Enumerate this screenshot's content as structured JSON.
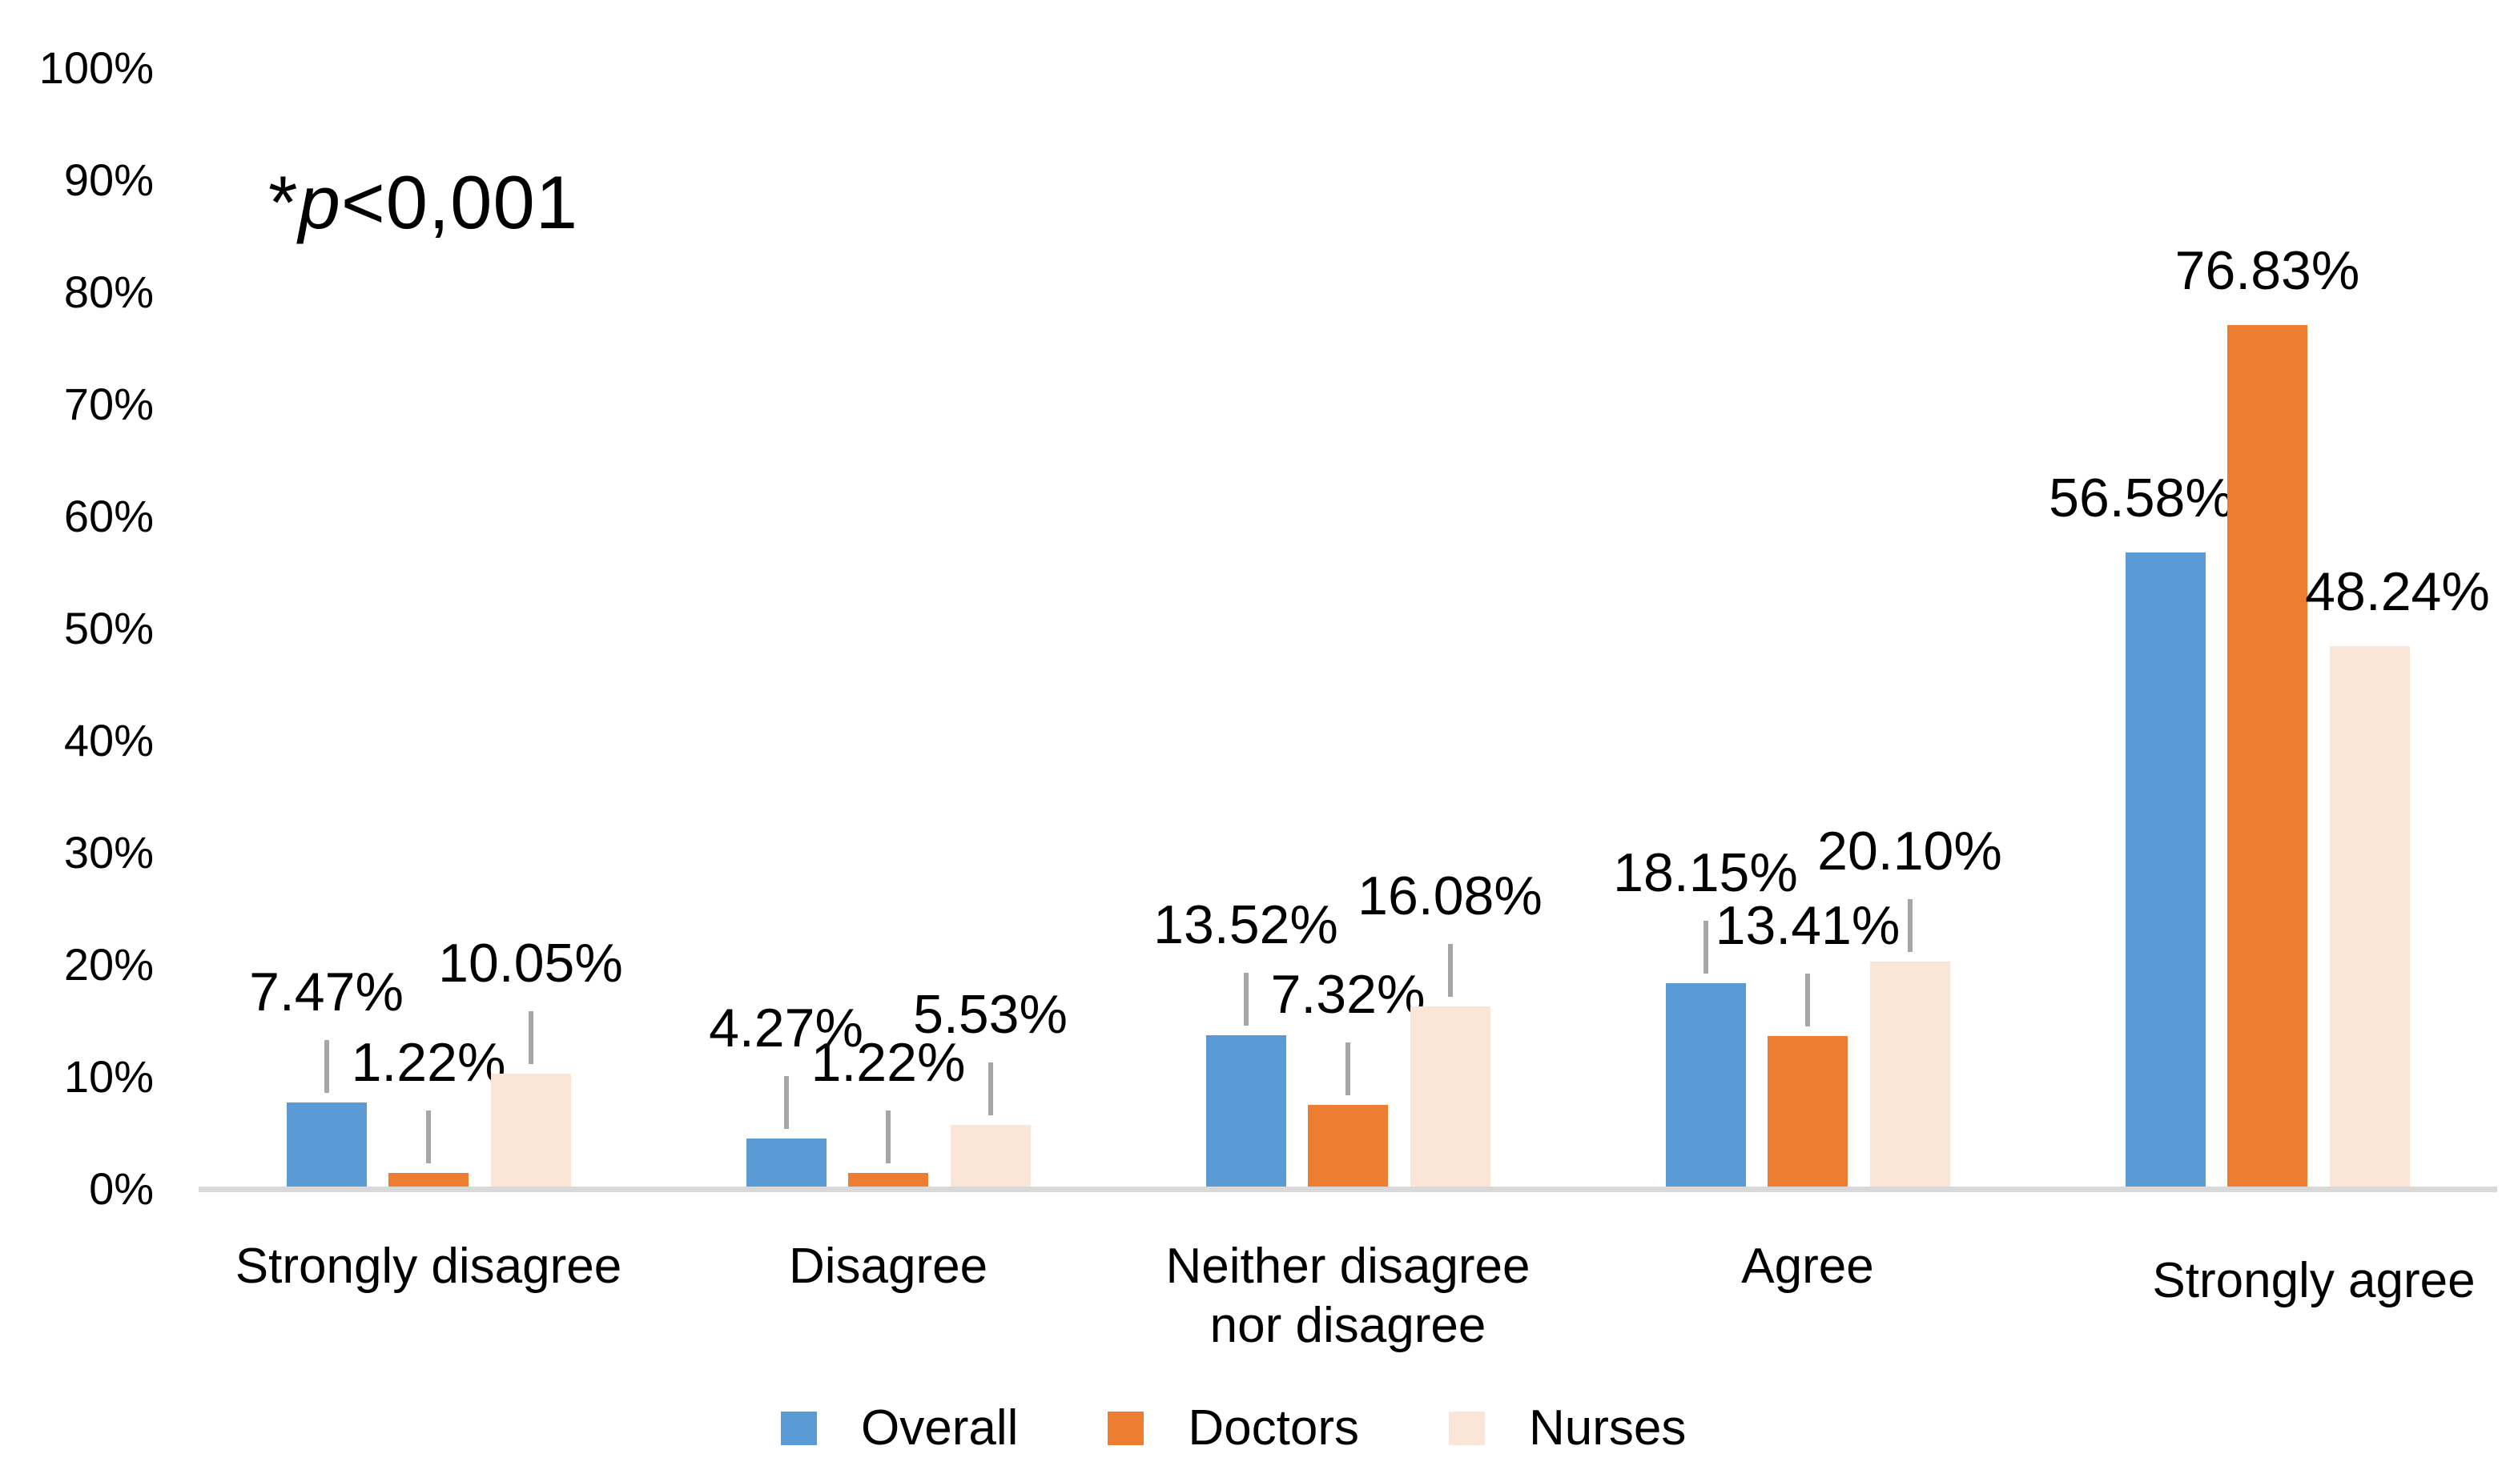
{
  "figure": {
    "annotation_parts": {
      "star": "*",
      "p": "p",
      "rest": "<0,001"
    }
  },
  "y_axis": {
    "ticks": [
      "100%",
      "90%",
      "80%",
      "70%",
      "60%",
      "50%",
      "40%",
      "30%",
      "20%",
      "10%",
      "0%"
    ]
  },
  "chart_data": {
    "type": "bar",
    "title": "",
    "xlabel": "",
    "ylabel": "",
    "annotation": "*p<0,001",
    "ylim": [
      0,
      100
    ],
    "y_tick_step": 10,
    "grid": false,
    "legend_position": "bottom",
    "categories": [
      "Strongly disagree",
      "Disagree",
      "Neither disagree\nnor disagree",
      "Agree",
      "Strongly agree"
    ],
    "series": [
      {
        "name": "Overall",
        "color": "#5B9BD5",
        "values": [
          7.47,
          4.27,
          13.52,
          18.15,
          56.58
        ],
        "labels": [
          "7.47%",
          "4.27%",
          "13.52%",
          "18.15%",
          "56.58%"
        ]
      },
      {
        "name": "Doctors",
        "color": "#ED7D31",
        "values": [
          1.22,
          1.22,
          7.32,
          13.41,
          76.83
        ],
        "labels": [
          "1.22%",
          "1.22%",
          "7.32%",
          "13.41%",
          "76.83%"
        ]
      },
      {
        "name": "Nurses",
        "color": "#FBE5D6",
        "values": [
          10.05,
          5.53,
          16.08,
          20.1,
          48.24
        ],
        "labels": [
          "10.05%",
          "5.53%",
          "16.08%",
          "20.10%",
          "48.24%"
        ]
      }
    ],
    "colors": {
      "axis_line": "#D9D9D9",
      "leader_line": "#A6A6A6",
      "text": "#000000"
    }
  }
}
